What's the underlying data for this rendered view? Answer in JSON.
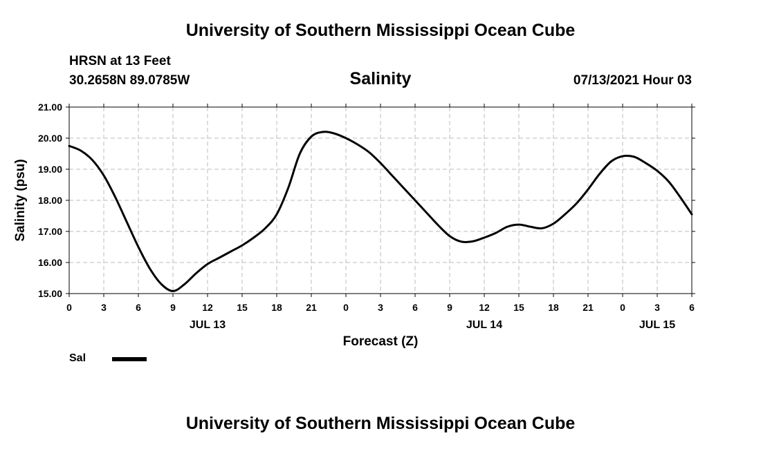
{
  "header": {
    "top_title": "University of Southern Mississippi Ocean Cube",
    "station": "HRSN at 13 Feet",
    "coords": "30.2658N  89.0785W",
    "datetime": "07/13/2021 Hour 03",
    "bottom_title": "University of Southern Mississippi Ocean Cube"
  },
  "legend": {
    "label": "Sal"
  },
  "chart_data": {
    "type": "line",
    "title": "Salinity",
    "xlabel": "Forecast (Z)",
    "ylabel": "Salinity (psu)",
    "xlim": [
      0,
      54
    ],
    "ylim": [
      15,
      21
    ],
    "grid": true,
    "legend_position": "bottom-left",
    "y_ticks": [
      "15.00",
      "16.00",
      "17.00",
      "18.00",
      "19.00",
      "20.00",
      "21.00"
    ],
    "x_ticks": [
      "0",
      "3",
      "6",
      "9",
      "12",
      "15",
      "18",
      "21",
      "0",
      "3",
      "6",
      "9",
      "12",
      "15",
      "18",
      "21",
      "0",
      "3",
      "6"
    ],
    "day_labels": [
      {
        "label": "JUL 13",
        "x": 12
      },
      {
        "label": "JUL 14",
        "x": 36
      },
      {
        "label": "JUL 15",
        "x": 51
      }
    ],
    "series": [
      {
        "name": "Sal",
        "x": [
          0,
          1,
          2,
          3,
          4,
          5,
          6,
          7,
          8,
          9,
          10,
          11,
          12,
          13,
          14,
          15,
          16,
          17,
          18,
          19,
          20,
          21,
          22,
          23,
          24,
          25,
          26,
          27,
          28,
          29,
          30,
          31,
          32,
          33,
          34,
          35,
          36,
          37,
          38,
          39,
          40,
          41,
          42,
          43,
          44,
          45,
          46,
          47,
          48,
          49,
          50,
          51,
          52,
          53,
          54
        ],
        "values": [
          19.75,
          19.6,
          19.3,
          18.8,
          18.1,
          17.3,
          16.5,
          15.8,
          15.3,
          15.08,
          15.3,
          15.65,
          15.95,
          16.15,
          16.35,
          16.55,
          16.8,
          17.1,
          17.55,
          18.4,
          19.5,
          20.05,
          20.2,
          20.15,
          20.0,
          19.8,
          19.55,
          19.2,
          18.8,
          18.4,
          18.0,
          17.6,
          17.2,
          16.85,
          16.67,
          16.68,
          16.8,
          16.95,
          17.15,
          17.22,
          17.15,
          17.1,
          17.25,
          17.55,
          17.9,
          18.35,
          18.85,
          19.25,
          19.42,
          19.4,
          19.2,
          18.95,
          18.6,
          18.1,
          17.55
        ]
      }
    ]
  }
}
